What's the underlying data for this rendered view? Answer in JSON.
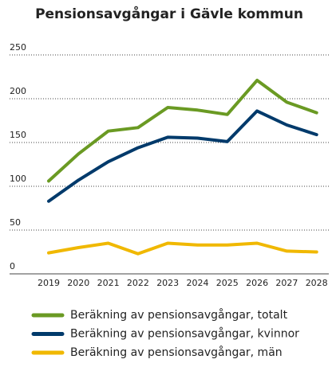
{
  "chart_data": {
    "type": "line",
    "title": "Pensionsavgångar i Gävle kommun",
    "x": [
      "2019",
      "2020",
      "2021",
      "2022",
      "2023",
      "2024",
      "2025",
      "2026",
      "2027",
      "2028"
    ],
    "series": [
      {
        "name": "Beräkning av pensionsavgångar, totalt",
        "color": "#6a9a23",
        "values": [
          106,
          137,
          163,
          167,
          190,
          187,
          182,
          221,
          196,
          184
        ]
      },
      {
        "name": "Beräkning av pensionsavgångar, kvinnor",
        "color": "#003a6b",
        "values": [
          83,
          107,
          128,
          144,
          156,
          155,
          151,
          186,
          170,
          159
        ]
      },
      {
        "name": "Beräkning av pensionsavgångar, män",
        "color": "#f0b800",
        "values": [
          24,
          30,
          35,
          23,
          35,
          33,
          33,
          35,
          26,
          25
        ]
      }
    ],
    "ylim": [
      0,
      250
    ],
    "yticks": [
      0,
      50,
      100,
      150,
      200,
      250
    ],
    "grid": true
  }
}
